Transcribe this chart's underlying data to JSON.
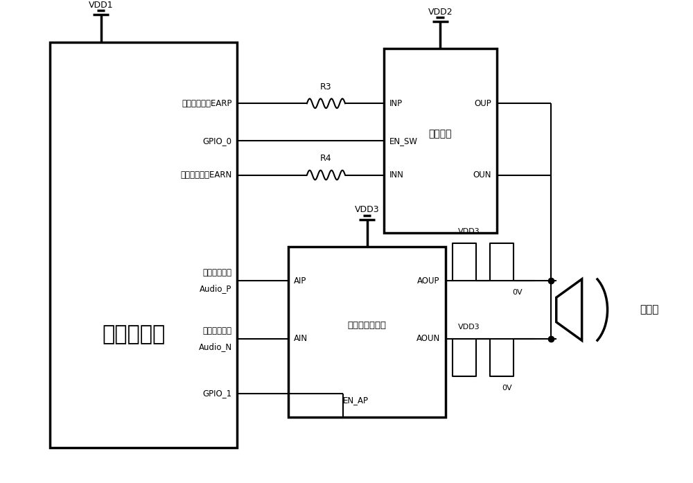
{
  "bg_color": "#ffffff",
  "line_color": "#000000",
  "fig_width": 10.0,
  "fig_height": 6.97,
  "labels": {
    "audio_proc": "音频处理器",
    "analog_sw": "模拟开关",
    "amp": "音频功率放大器",
    "vdd1": "VDD1",
    "vdd2": "VDD2",
    "vdd3_top": "VDD3",
    "vdd3_sig1": "VDD3",
    "vdd3_sig2": "VDD3",
    "ov1": "0V",
    "ov2": "0V",
    "earp": "听筒输出正端EARP",
    "gpio0": "GPIO_0",
    "earn": "听筒输出负端EARN",
    "audiop_top": "音频输出正端",
    "audiop": "Audio_P",
    "audion_top": "音频输出负端",
    "audion": "Audio_N",
    "gpio1": "GPIO_1",
    "r3": "R3",
    "r4": "R4",
    "inp": "INP",
    "ensw": "EN_SW",
    "inn": "INN",
    "oup": "OUP",
    "oun": "OUN",
    "aip": "AIP",
    "ain": "AIN",
    "enap": "EN_AP",
    "aoup": "AOUP",
    "aoun": "AOUN",
    "speaker": "扬声器"
  }
}
